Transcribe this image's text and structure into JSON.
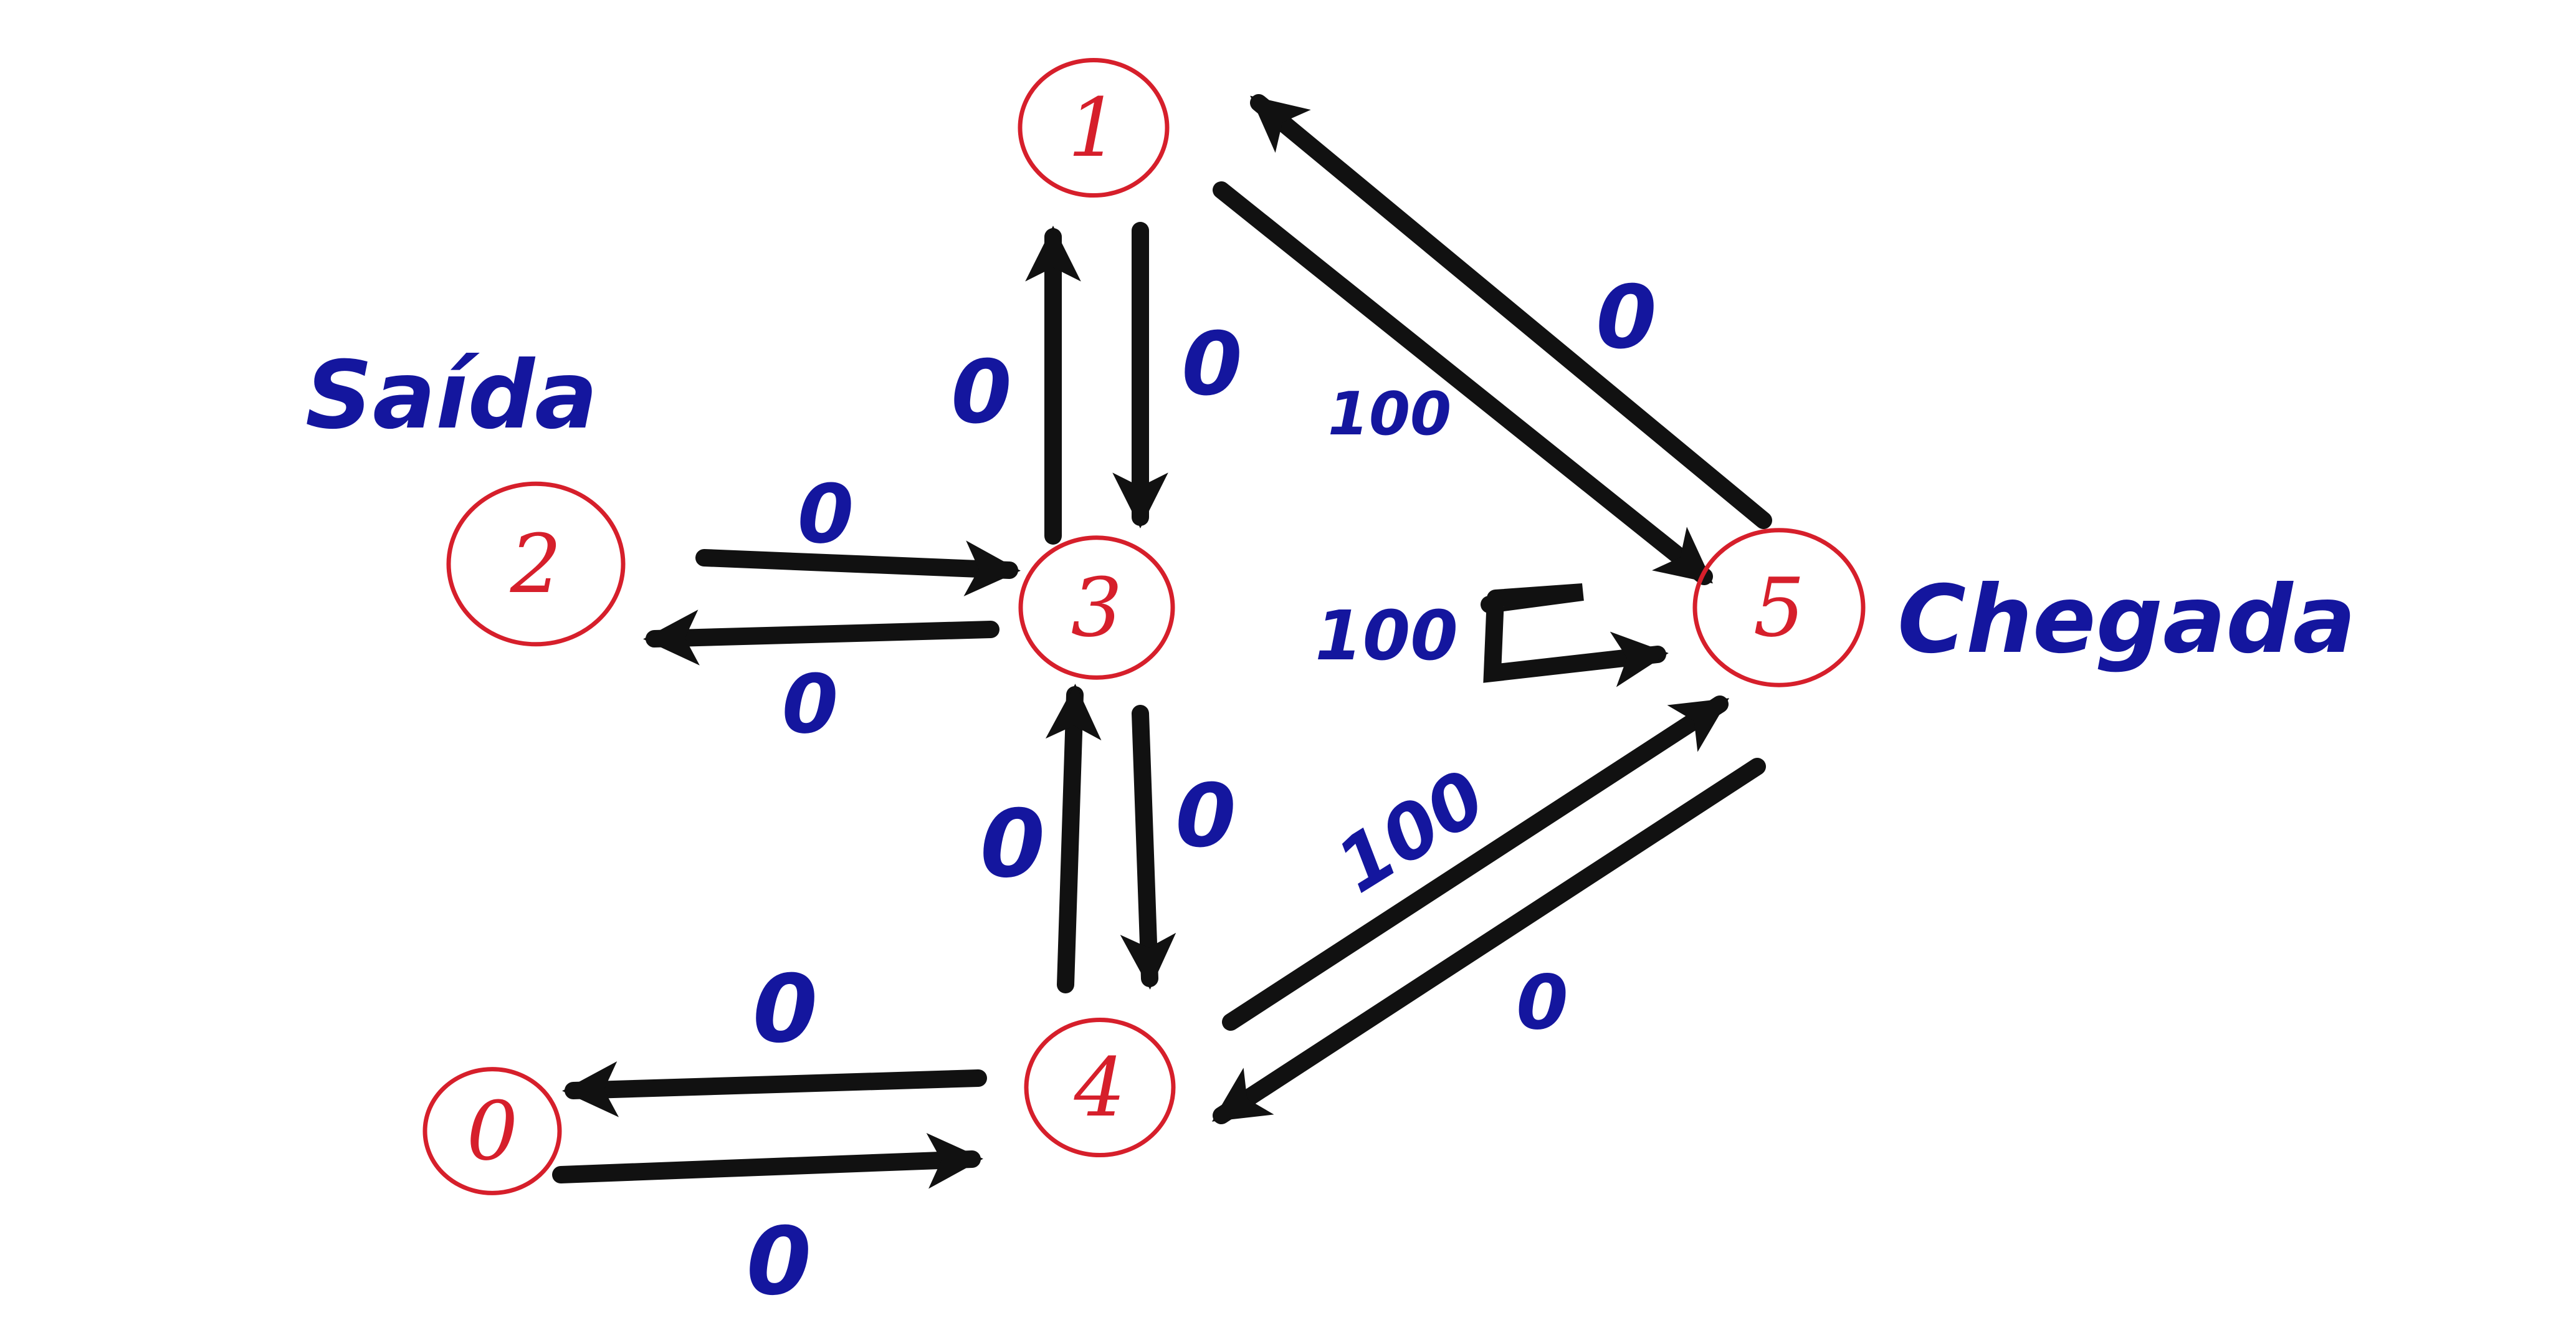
{
  "colors": {
    "node": "#d61f2b",
    "edge": "#111111",
    "weight": "#14169e",
    "background": "#ffffff"
  },
  "diagram": {
    "nodes": [
      {
        "id": "1",
        "label": "1"
      },
      {
        "id": "2",
        "label": "2"
      },
      {
        "id": "3",
        "label": "3"
      },
      {
        "id": "4",
        "label": "4"
      },
      {
        "id": "5",
        "label": "5"
      },
      {
        "id": "0",
        "label": "0"
      }
    ],
    "edges": [
      {
        "id": "e-3-1",
        "from": "3",
        "to": "1",
        "weight": "0"
      },
      {
        "id": "e-1-3",
        "from": "1",
        "to": "3",
        "weight": "0"
      },
      {
        "id": "e-2-3",
        "from": "2",
        "to": "3",
        "weight": "0"
      },
      {
        "id": "e-3-2",
        "from": "3",
        "to": "2",
        "weight": "0"
      },
      {
        "id": "e-4-3",
        "from": "4",
        "to": "3",
        "weight": "0"
      },
      {
        "id": "e-3-4",
        "from": "3",
        "to": "4",
        "weight": "0"
      },
      {
        "id": "e-4-0",
        "from": "4",
        "to": "0",
        "weight": "0"
      },
      {
        "id": "e-0-4",
        "from": "0",
        "to": "4",
        "weight": "0"
      },
      {
        "id": "e-5-1",
        "from": "5",
        "to": "1",
        "weight": "0"
      },
      {
        "id": "e-1-5",
        "from": "1",
        "to": "5",
        "weight": "100"
      },
      {
        "id": "e-3-5",
        "from": "3",
        "to": "5",
        "weight": "100"
      },
      {
        "id": "e-4-5",
        "from": "4",
        "to": "5",
        "weight": "100"
      },
      {
        "id": "e-5-4",
        "from": "5",
        "to": "4",
        "weight": "0"
      }
    ],
    "labels": {
      "start": "Saída",
      "end": "Chegada"
    }
  }
}
